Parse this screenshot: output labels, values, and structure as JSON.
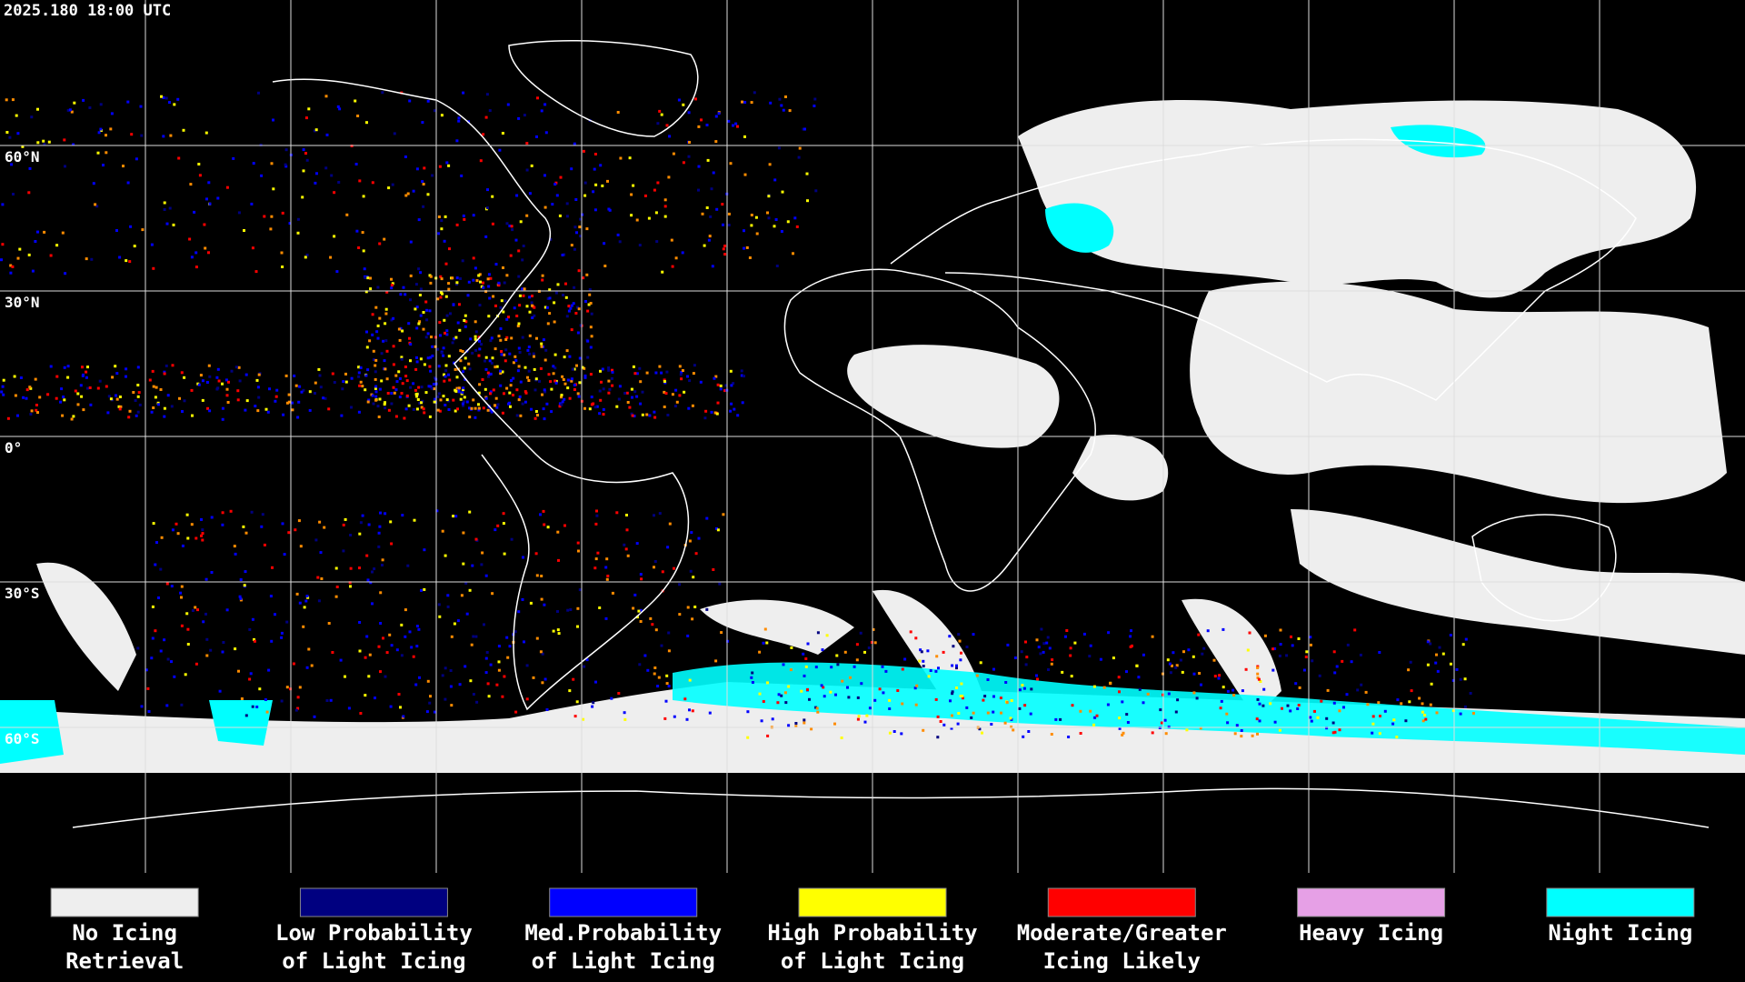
{
  "header": {
    "timestamp": "2025.180 18:00 UTC"
  },
  "map": {
    "latitude_labels": [
      "60°N",
      "30°N",
      "0°",
      "30°S",
      "60°S"
    ]
  },
  "legend": {
    "items": [
      {
        "label": [
          "No Icing",
          "Retrieval"
        ],
        "color": "#eeeeee"
      },
      {
        "label": [
          "Low Probability",
          "of Light Icing"
        ],
        "color": "#000080"
      },
      {
        "label": [
          "Med.Probability",
          "of Light Icing"
        ],
        "color": "#0000ff"
      },
      {
        "label": [
          "High Probability",
          "of Light Icing"
        ],
        "color": "#ffff00"
      },
      {
        "label": [
          "Moderate/Greater",
          "Icing Likely"
        ],
        "color": "#ff0000"
      },
      {
        "label": [
          "Heavy Icing"
        ],
        "color": "#e6a0e6"
      },
      {
        "label": [
          "Night Icing"
        ],
        "color": "#00ffff"
      }
    ]
  }
}
